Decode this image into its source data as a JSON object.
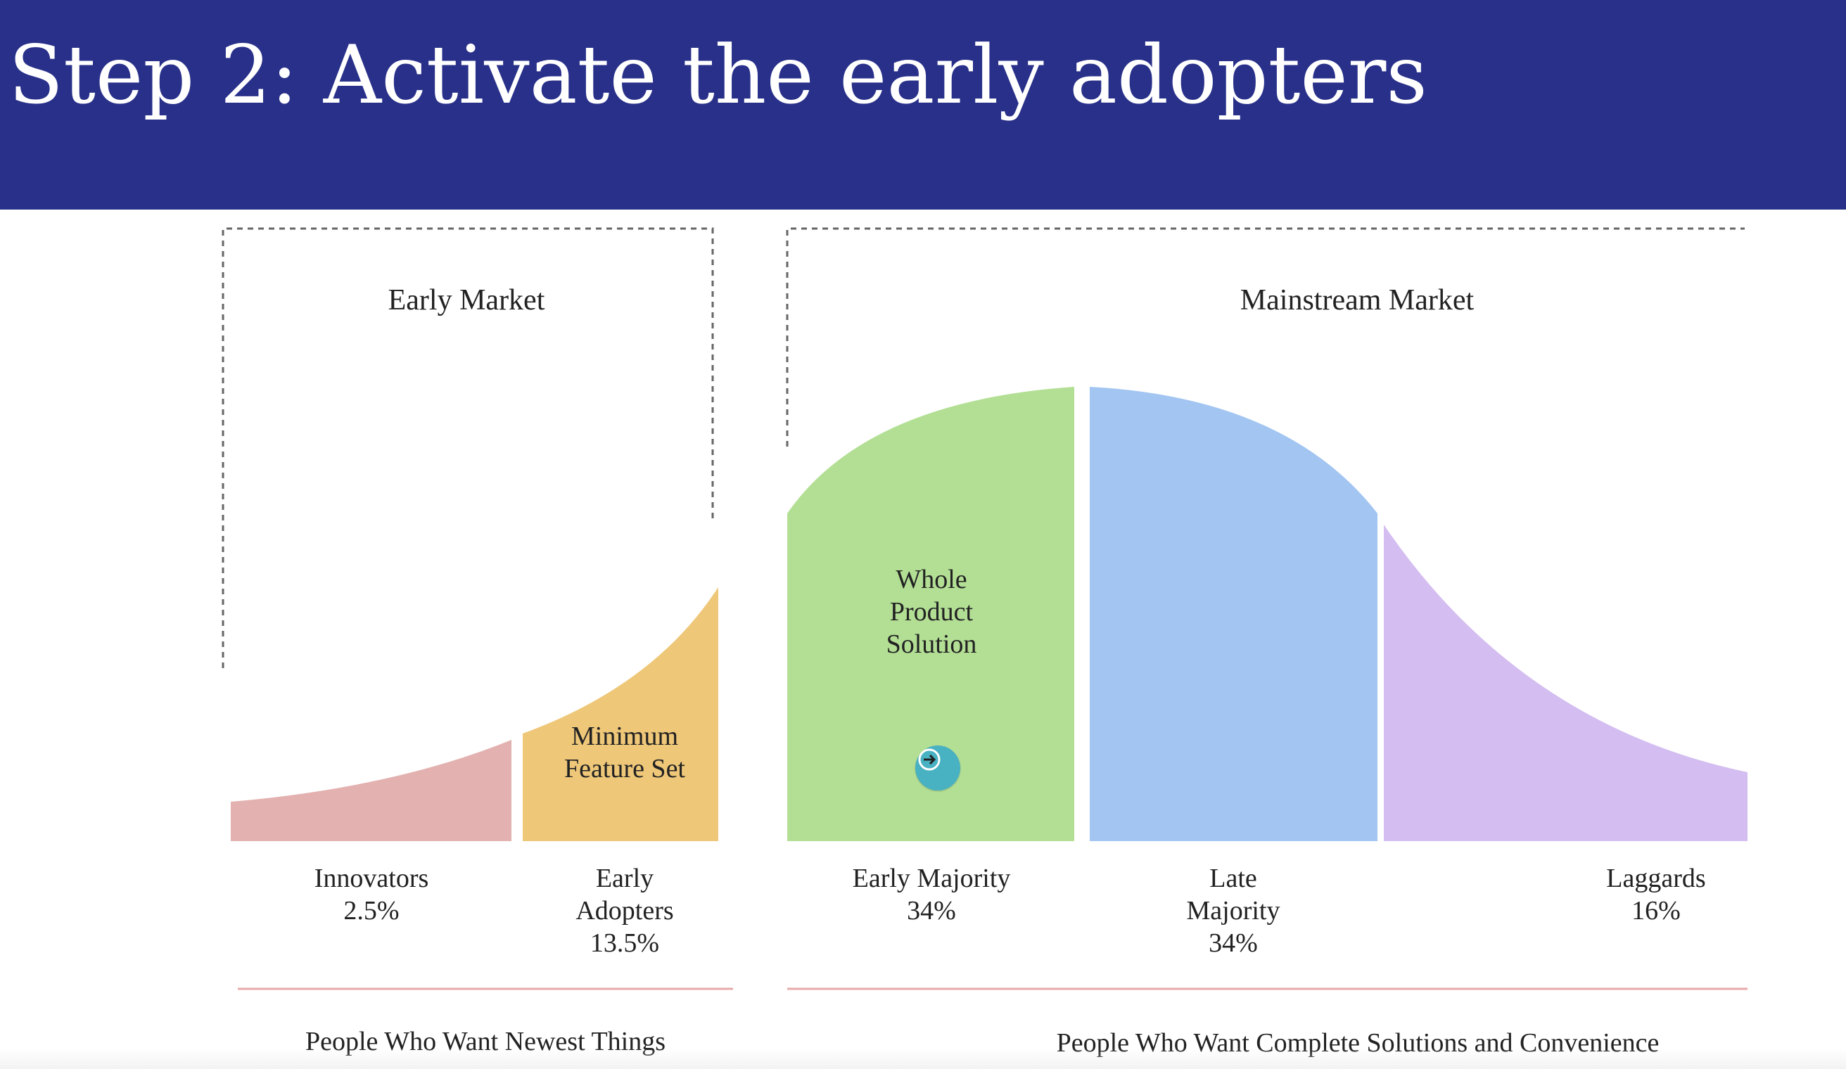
{
  "title": "Step 2: Activate the early adopters",
  "markets": {
    "early": "Early Market",
    "mainstream": "Mainstream Market"
  },
  "curve_labels": {
    "minimum_feature_set": [
      "Minimum",
      "Feature Set"
    ],
    "whole_product_solution": [
      "Whole",
      "Product",
      "Solution"
    ]
  },
  "segments": [
    {
      "lines": [
        "Innovators",
        "2.5%"
      ],
      "share": 2.5,
      "color": "#e3b1b0"
    },
    {
      "lines": [
        "Early",
        "Adopters",
        "13.5%"
      ],
      "share": 13.5,
      "color": "#eec779"
    },
    {
      "lines": [
        "Early Majority",
        "34%"
      ],
      "share": 34,
      "color": "#b3df95"
    },
    {
      "lines": [
        "Late",
        "Majority",
        "34%"
      ],
      "share": 34,
      "color": "#a2c5f2"
    },
    {
      "lines": [
        "Laggards",
        "16%"
      ],
      "share": 16,
      "color": "#d4bef1"
    }
  ],
  "captions": {
    "left": "People Who Want Newest Things",
    "right": "People Who Want Complete Solutions and Convenience"
  },
  "icons": {
    "next": "arrow-right-icon"
  },
  "colors": {
    "header": "#283089",
    "divider": "#e7a9a9",
    "arrow_button": "#48b1c2"
  }
}
